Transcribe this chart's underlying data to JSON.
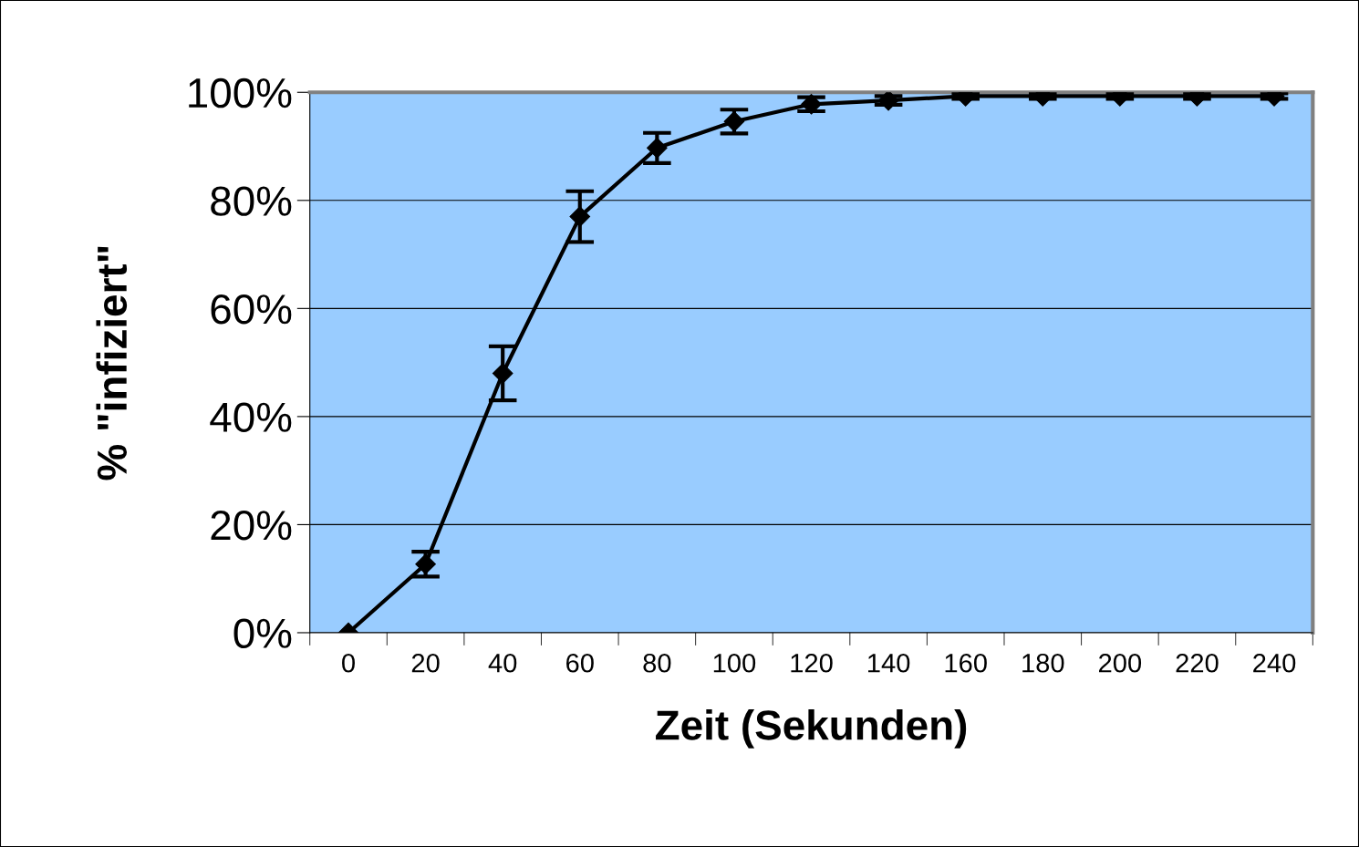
{
  "chart_data": {
    "type": "line",
    "xlabel": "Zeit (Sekunden)",
    "ylabel": "% \"infiziert\"",
    "categories": [
      "0",
      "20",
      "40",
      "60",
      "80",
      "100",
      "120",
      "140",
      "160",
      "180",
      "200",
      "220",
      "240"
    ],
    "series": [
      {
        "color": "#000000",
        "values": [
          0,
          12.7,
          48,
          77,
          89.7,
          94.6,
          97.8,
          98.5,
          99.3,
          99.3,
          99.3,
          99.3,
          99.3
        ],
        "errors": [
          null,
          2.3,
          5,
          4.7,
          2.8,
          2.2,
          1.3,
          0.8,
          0.5,
          0.5,
          0.5,
          0.5,
          0.5
        ]
      }
    ],
    "ylim": [
      0,
      100
    ],
    "yticks": [
      {
        "value": 0,
        "label": "0%"
      },
      {
        "value": 20,
        "label": "20%"
      },
      {
        "value": 40,
        "label": "40%"
      },
      {
        "value": 60,
        "label": "60%"
      },
      {
        "value": 80,
        "label": "80%"
      },
      {
        "value": 100,
        "label": "100%"
      }
    ],
    "grid": "y",
    "marker": "diamond",
    "line_style": "solid",
    "legend": false
  }
}
